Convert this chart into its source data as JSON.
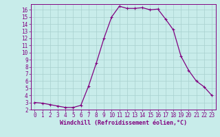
{
  "x": [
    0,
    1,
    2,
    3,
    4,
    5,
    6,
    7,
    8,
    9,
    10,
    11,
    12,
    13,
    14,
    15,
    16,
    17,
    18,
    19,
    20,
    21,
    22,
    23
  ],
  "y": [
    3.0,
    2.9,
    2.7,
    2.5,
    2.3,
    2.3,
    2.6,
    5.3,
    8.5,
    12.0,
    15.0,
    16.5,
    16.2,
    16.2,
    16.3,
    16.0,
    16.1,
    14.7,
    13.2,
    9.5,
    7.5,
    6.0,
    5.2,
    4.0
  ],
  "line_color": "#800080",
  "marker": "+",
  "marker_size": 3,
  "marker_lw": 0.8,
  "bg_color": "#c8ecea",
  "grid_color": "#a8d0ce",
  "xlabel": "Windchill (Refroidissement éolien,°C)",
  "ylim": [
    2,
    16.8
  ],
  "xlim": [
    -0.5,
    23.5
  ],
  "yticks": [
    2,
    3,
    4,
    5,
    6,
    7,
    8,
    9,
    10,
    11,
    12,
    13,
    14,
    15,
    16
  ],
  "xticks": [
    0,
    1,
    2,
    3,
    4,
    5,
    6,
    7,
    8,
    9,
    10,
    11,
    12,
    13,
    14,
    15,
    16,
    17,
    18,
    19,
    20,
    21,
    22,
    23
  ],
  "tick_color": "#800080",
  "spine_color": "#800080",
  "label_color": "#800080",
  "xlabel_fontsize": 6.0,
  "tick_fontsize": 5.5,
  "line_width": 0.9
}
